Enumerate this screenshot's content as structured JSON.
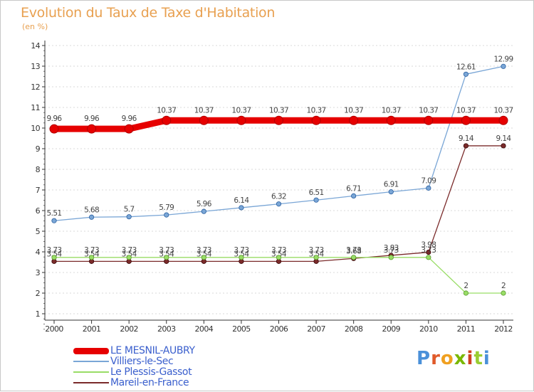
{
  "header": {
    "title": "Evolution du Taux de Taxe d'Habitation",
    "unit": "(en %)"
  },
  "logo": {
    "letters": [
      "P",
      "r",
      "o",
      "x",
      "i",
      "t",
      "i"
    ],
    "colors": [
      "#4a90d9",
      "#e05a2a",
      "#f0a020",
      "#7ab800",
      "#d04020",
      "#9acd32",
      "#4a90d9"
    ]
  },
  "chart_data": {
    "type": "line",
    "title": "Evolution du Taux de Taxe d'Habitation",
    "ylabel": "(en %)",
    "xlabel": "",
    "ylim": [
      0,
      14
    ],
    "yticks": [
      1,
      2,
      3,
      4,
      5,
      6,
      7,
      8,
      9,
      10,
      11,
      12,
      13,
      14
    ],
    "x": [
      "2000",
      "2001",
      "2002",
      "2003",
      "2004",
      "2005",
      "2006",
      "2007",
      "2008",
      "2009",
      "2010",
      "2011",
      "2012"
    ],
    "grid": "horizontal-dashed",
    "legend_position": "bottom-left",
    "series": [
      {
        "name": "LE MESNIL-AUBRY",
        "color": "#e60000",
        "values": [
          9.96,
          9.96,
          9.96,
          10.37,
          10.37,
          10.37,
          10.37,
          10.37,
          10.37,
          10.37,
          10.37,
          10.37,
          10.37
        ],
        "labels": [
          "9.96",
          "9.96",
          "9.96",
          "10.37",
          "10.37",
          "10.37",
          "10.37",
          "10.37",
          "10.37",
          "10.37",
          "10.37",
          "10.37",
          "10.37"
        ]
      },
      {
        "name": "Villiers-le-Sec",
        "color": "#7aa6d6",
        "values": [
          5.51,
          5.68,
          5.7,
          5.79,
          5.96,
          6.14,
          6.32,
          6.51,
          6.71,
          6.91,
          7.09,
          12.61,
          12.99
        ],
        "labels": [
          "5.51",
          "5.68",
          "5.7",
          "5.79",
          "5.96",
          "6.14",
          "6.32",
          "6.51",
          "6.71",
          "6.91",
          "7.09",
          "12.61",
          "12.99"
        ]
      },
      {
        "name": "Le Plessis-Gassot",
        "color": "#99dd66",
        "values": [
          3.73,
          3.73,
          3.73,
          3.73,
          3.73,
          3.73,
          3.73,
          3.73,
          3.73,
          3.73,
          3.73,
          2,
          2
        ],
        "labels": [
          "3.73",
          "3.73",
          "3.73",
          "3.73",
          "3.73",
          "3.73",
          "3.73",
          "3.73",
          "3.73",
          "3.73",
          "3.73",
          "2",
          "2"
        ]
      },
      {
        "name": "Mareil-en-France",
        "color": "#7a2a2a",
        "values": [
          3.54,
          3.54,
          3.54,
          3.54,
          3.54,
          3.54,
          3.54,
          3.54,
          3.68,
          3.83,
          3.98,
          9.14,
          9.14
        ],
        "labels": [
          "3.54",
          "3.54",
          "3.54",
          "3.54",
          "3.54",
          "3.54",
          "3.54",
          "3.54",
          "3.68",
          "3.83",
          "3.98",
          "9.14",
          "9.14"
        ]
      }
    ]
  }
}
